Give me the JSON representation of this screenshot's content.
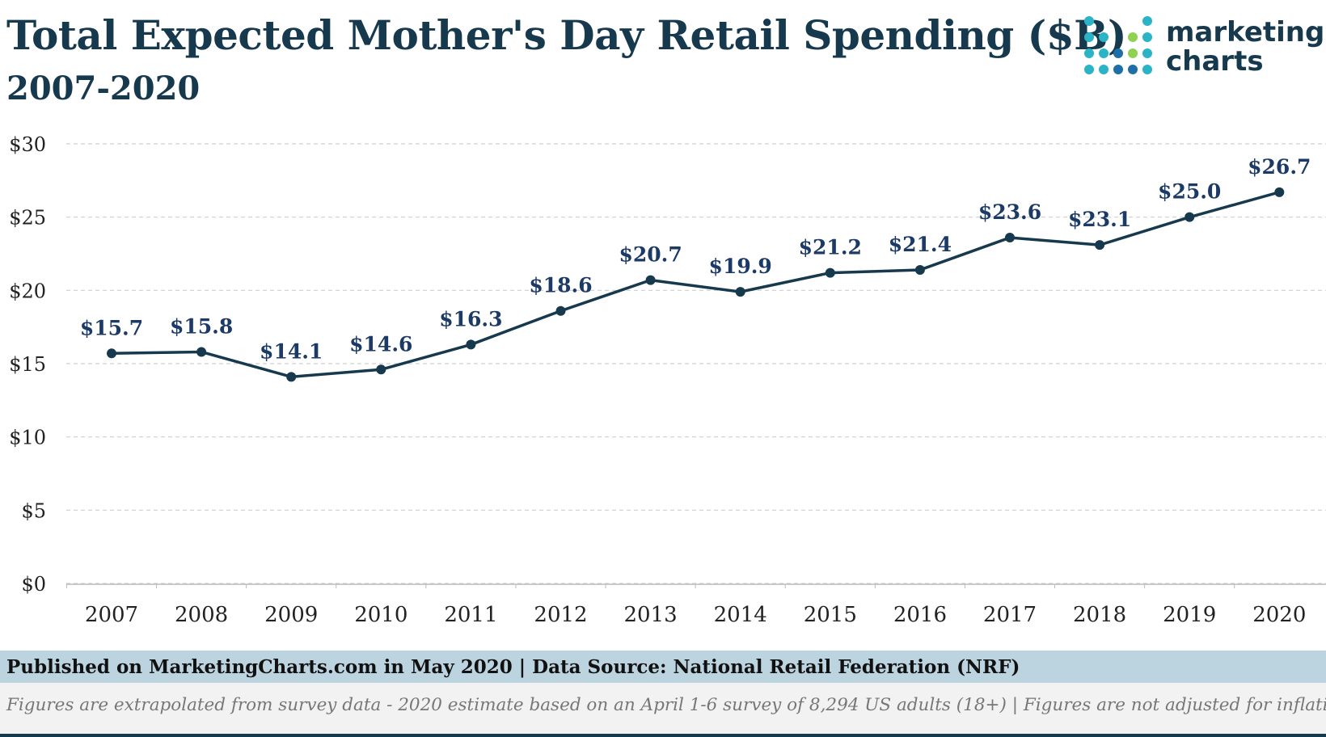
{
  "header": {
    "title": "Total Expected Mother's Day Retail Spending ($B)",
    "subtitle": "2007-2020"
  },
  "logo": {
    "line1": "marketing",
    "line2": "charts",
    "colors": [
      "#2bb3c6",
      "#8fd24f",
      "#1e6fa8"
    ]
  },
  "chart_data": {
    "type": "line",
    "title": "Total Expected Mother's Day Retail Spending ($B)",
    "subtitle": "2007-2020",
    "categories": [
      "2007",
      "2008",
      "2009",
      "2010",
      "2011",
      "2012",
      "2013",
      "2014",
      "2015",
      "2016",
      "2017",
      "2018",
      "2019",
      "2020"
    ],
    "series": [
      {
        "values": [
          15.7,
          15.8,
          14.1,
          14.6,
          16.3,
          18.6,
          20.7,
          19.9,
          21.2,
          21.4,
          23.6,
          23.1,
          25.0,
          26.7
        ],
        "labels": [
          "$15.7",
          "$15.8",
          "$14.1",
          "$14.6",
          "$16.3",
          "$18.6",
          "$20.7",
          "$19.9",
          "$21.2",
          "$21.4",
          "$23.6",
          "$23.1",
          "$25.0",
          "$26.7"
        ],
        "color": "#17394d"
      }
    ],
    "y_ticks": [
      0,
      5,
      10,
      15,
      20,
      25,
      30
    ],
    "y_tick_labels": [
      "$0",
      "$5",
      "$10",
      "$15",
      "$20",
      "$25",
      "$30"
    ],
    "ylim": [
      0,
      30
    ],
    "grid": true,
    "label_color": "#1b3a66",
    "axis_text_color": "#222222"
  },
  "footer": {
    "source": "Published on MarketingCharts.com in May 2020 | Data Source: National Retail Federation (NRF)",
    "note": "Figures are extrapolated from survey data - 2020 estimate based on an April 1-6 survey of 8,294 US adults (18+) | Figures are not adjusted for inflation"
  }
}
